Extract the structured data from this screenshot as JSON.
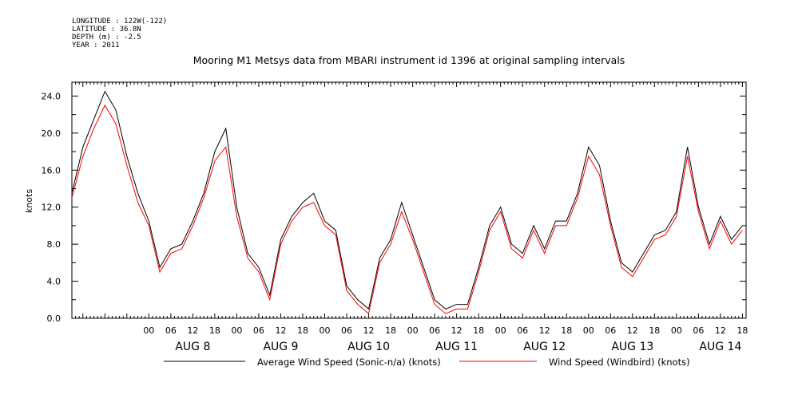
{
  "header": {
    "longitude": "LONGITUDE : 122W(-122)",
    "latitude": "LATITUDE : 36.8N",
    "depth": "DEPTH (m) : -2.5",
    "year": "YEAR : 2011"
  },
  "chart_data": {
    "type": "line",
    "title": "Mooring M1 Metsys data from MBARI instrument id 1396 at original sampling intervals",
    "ylabel": "knots",
    "xlabel": "",
    "ylim": [
      0,
      25.5
    ],
    "xlim_hours": [
      -21,
      163
    ],
    "grid": false,
    "legend_position": "bottom",
    "y_ticks": [
      "0.0",
      "4.0",
      "8.0",
      "12.0",
      "16.0",
      "20.0",
      "24.0"
    ],
    "hour_ticks": [
      "00",
      "06",
      "12",
      "18",
      "00",
      "06",
      "12",
      "18",
      "00",
      "06",
      "12",
      "18",
      "00",
      "06",
      "12",
      "18",
      "00",
      "06",
      "12",
      "18",
      "00",
      "06",
      "12",
      "18",
      "00",
      "06",
      "12",
      "18"
    ],
    "day_labels": [
      "AUG  8",
      "AUG  9",
      "AUG 10",
      "AUG 11",
      "AUG 12",
      "AUG 13",
      "AUG 14"
    ],
    "series": [
      {
        "name": "Average Wind Speed (Sonic-n/a) (knots)",
        "color": "#000000",
        "x_hours": [
          -21,
          -18,
          -15,
          -12,
          -9,
          -6,
          -3,
          0,
          3,
          6,
          9,
          12,
          15,
          18,
          21,
          24,
          27,
          30,
          33,
          36,
          39,
          42,
          45,
          48,
          51,
          54,
          57,
          60,
          63,
          66,
          69,
          72,
          75,
          78,
          81,
          84,
          87,
          90,
          93,
          96,
          99,
          102,
          105,
          108,
          111,
          114,
          117,
          120,
          123,
          126,
          129,
          132,
          135,
          138,
          141,
          144,
          147,
          150,
          153,
          156,
          159,
          162
        ],
        "values": [
          13.5,
          18.5,
          21.5,
          24.5,
          22.5,
          17.5,
          13.5,
          10.5,
          5.5,
          7.5,
          8.0,
          10.5,
          13.5,
          18.0,
          20.5,
          12.0,
          7.0,
          5.5,
          2.5,
          8.5,
          11.0,
          12.5,
          13.5,
          10.5,
          9.5,
          3.5,
          2.0,
          1.0,
          6.5,
          8.5,
          12.5,
          9.0,
          5.5,
          2.0,
          1.0,
          1.5,
          1.5,
          5.5,
          10.0,
          12.0,
          8.0,
          7.0,
          10.0,
          7.5,
          10.5,
          10.5,
          13.5,
          18.5,
          16.5,
          10.5,
          6.0,
          5.0,
          7.0,
          9.0,
          9.5,
          11.5,
          18.5,
          12.0,
          8.0,
          11.0,
          8.5,
          10.0
        ]
      },
      {
        "name": "Wind Speed (Windbird) (knots)",
        "color": "#ff0000",
        "x_hours": [
          -21,
          -18,
          -15,
          -12,
          -9,
          -6,
          -3,
          0,
          3,
          6,
          9,
          12,
          15,
          18,
          21,
          24,
          27,
          30,
          33,
          36,
          39,
          42,
          45,
          48,
          51,
          54,
          57,
          60,
          63,
          66,
          69,
          72,
          75,
          78,
          81,
          84,
          87,
          90,
          93,
          96,
          99,
          102,
          105,
          108,
          111,
          114,
          117,
          120,
          123,
          126,
          129,
          132,
          135,
          138,
          141,
          144,
          147,
          150,
          153,
          156,
          159,
          162
        ],
        "values": [
          13.0,
          17.5,
          20.5,
          23.0,
          21.0,
          16.5,
          12.5,
          10.0,
          5.0,
          7.0,
          7.5,
          10.0,
          13.0,
          17.0,
          18.5,
          11.0,
          6.5,
          5.0,
          2.0,
          8.0,
          10.5,
          12.0,
          12.5,
          10.0,
          9.0,
          3.0,
          1.5,
          0.5,
          6.0,
          8.0,
          11.5,
          8.5,
          5.0,
          1.5,
          0.5,
          1.0,
          1.0,
          5.0,
          9.5,
          11.5,
          7.5,
          6.5,
          9.5,
          7.0,
          10.0,
          10.0,
          13.0,
          17.5,
          15.5,
          10.0,
          5.5,
          4.5,
          6.5,
          8.5,
          9.0,
          11.0,
          17.5,
          11.5,
          7.5,
          10.5,
          8.0,
          9.5
        ]
      }
    ]
  }
}
